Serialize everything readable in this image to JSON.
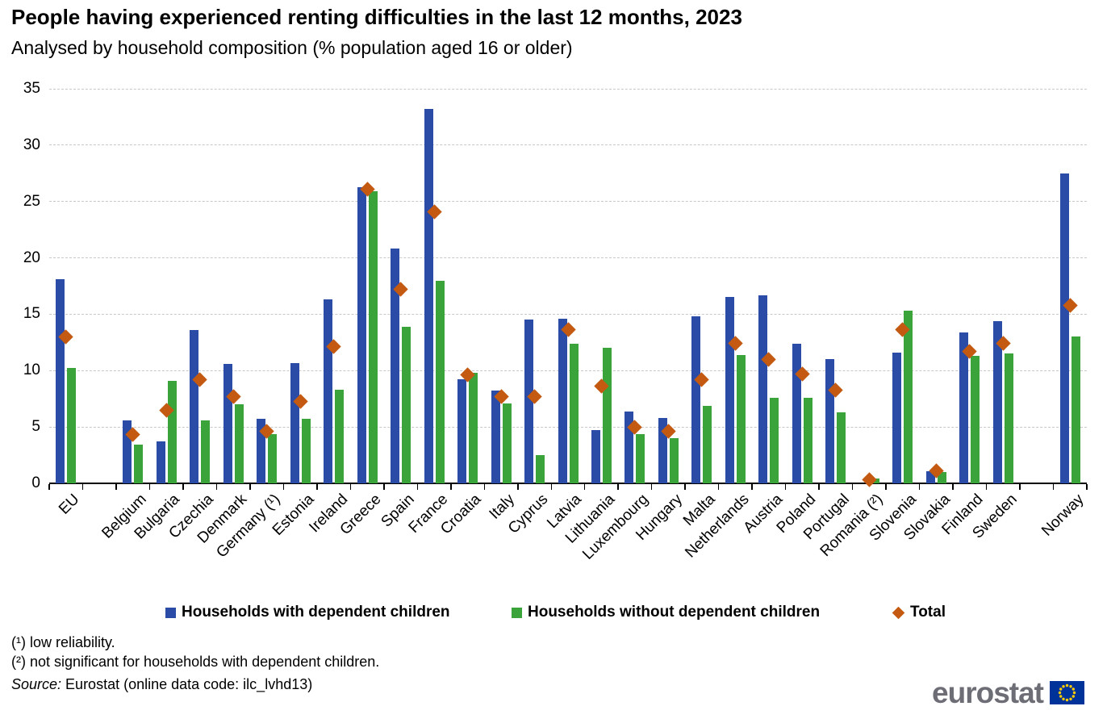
{
  "header": {
    "title": "People having experienced renting difficulties in the last 12 months, 2023",
    "subtitle": "Analysed by household composition (% population aged 16 or older)"
  },
  "chart_data": {
    "type": "bar",
    "title": "People having experienced renting difficulties in the last 12 months, 2023",
    "subtitle": "Analysed by household composition (% population aged 16 or older)",
    "ylabel": "% population aged 16 or older",
    "ylim": [
      0,
      35
    ],
    "ytick_step": 5,
    "grid": "horizontal-dashed",
    "legend_position": "bottom",
    "categories": [
      "EU",
      "Belgium",
      "Bulgaria",
      "Czechia",
      "Denmark",
      "Germany (¹)",
      "Estonia",
      "Ireland",
      "Greece",
      "Spain",
      "France",
      "Croatia",
      "Italy",
      "Cyprus",
      "Latvia",
      "Lithuania",
      "Luxembourg",
      "Hungary",
      "Malta",
      "Netherlands",
      "Austria",
      "Poland",
      "Portugal",
      "Romania (²)",
      "Slovenia",
      "Slovakia",
      "Finland",
      "Sweden",
      "Norway"
    ],
    "gap_after_indices": [
      0,
      27
    ],
    "series": [
      {
        "name": "Households with dependent children",
        "color": "#2a4ba6",
        "values": [
          18.1,
          5.6,
          3.7,
          13.6,
          10.6,
          5.7,
          10.7,
          16.3,
          26.3,
          20.8,
          33.2,
          9.2,
          8.2,
          14.5,
          14.6,
          4.7,
          6.4,
          5.8,
          14.8,
          16.5,
          16.7,
          12.4,
          11.0,
          null,
          11.6,
          1.1,
          13.4,
          14.4,
          27.5
        ]
      },
      {
        "name": "Households without dependent children",
        "color": "#3aa339",
        "values": [
          10.2,
          3.4,
          9.1,
          5.6,
          7.0,
          4.4,
          5.7,
          8.3,
          25.9,
          13.9,
          18.0,
          9.8,
          7.1,
          2.5,
          12.4,
          12.0,
          4.4,
          4.0,
          6.9,
          11.4,
          7.6,
          7.6,
          6.3,
          0.4,
          15.3,
          1.0,
          11.3,
          11.5,
          13.0
        ]
      }
    ],
    "total_markers": {
      "name": "Total",
      "shape": "diamond",
      "color": "#c45a11",
      "values": [
        13.0,
        4.3,
        6.5,
        9.2,
        7.7,
        4.6,
        7.3,
        12.1,
        26.1,
        17.2,
        24.1,
        9.6,
        7.7,
        7.7,
        13.6,
        8.6,
        5.0,
        4.6,
        9.2,
        12.4,
        11.0,
        9.7,
        8.3,
        0.3,
        13.6,
        1.1,
        11.7,
        12.4,
        15.8
      ]
    }
  },
  "legend": {
    "items": [
      {
        "label": "Households with dependent children",
        "shape": "square",
        "color": "#2a4ba6"
      },
      {
        "label": "Households without dependent children",
        "shape": "square",
        "color": "#3aa339"
      },
      {
        "label": "Total",
        "shape": "diamond",
        "color": "#c45a11"
      }
    ]
  },
  "footnotes": [
    "(¹) low reliability.",
    "(²) not significant for households with dependent children."
  ],
  "source": {
    "prefix": "Source:",
    "text": "Eurostat (online data code: ilc_lvhd13)"
  },
  "logo": {
    "text": "eurostat",
    "flag_blue": "#003399",
    "star_yellow": "#ffcc00"
  }
}
